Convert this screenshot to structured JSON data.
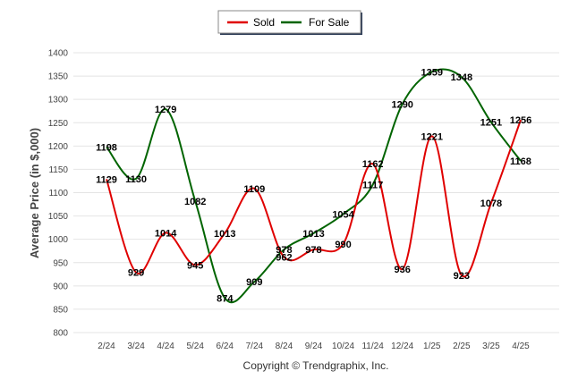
{
  "chart_data": {
    "type": "line",
    "title": "",
    "xlabel": "",
    "ylabel": "Average Price (in $,000)",
    "ylim": [
      800,
      1400
    ],
    "yticks": [
      800,
      850,
      900,
      950,
      1000,
      1050,
      1100,
      1150,
      1200,
      1250,
      1300,
      1350,
      1400
    ],
    "categories": [
      "2/24",
      "3/24",
      "4/24",
      "5/24",
      "6/24",
      "7/24",
      "8/24",
      "9/24",
      "10/24",
      "11/24",
      "12/24",
      "1/25",
      "2/25",
      "3/25",
      "4/25"
    ],
    "grid": true,
    "legend_position": "top-center",
    "series": [
      {
        "name": "Sold",
        "color": "#e00000",
        "values": [
          1129,
          929,
          1014,
          945,
          1013,
          1109,
          962,
          978,
          990,
          1162,
          936,
          1221,
          923,
          1078,
          1256
        ]
      },
      {
        "name": "For Sale",
        "color": "#006400",
        "values": [
          1198,
          1130,
          1279,
          1082,
          874,
          909,
          978,
          1013,
          1054,
          1117,
          1290,
          1359,
          1348,
          1251,
          1168
        ]
      }
    ]
  },
  "legend": {
    "sold_label": "Sold",
    "forsale_label": "For Sale"
  },
  "footer": {
    "copyright": "Copyright © Trendgraphix, Inc."
  }
}
